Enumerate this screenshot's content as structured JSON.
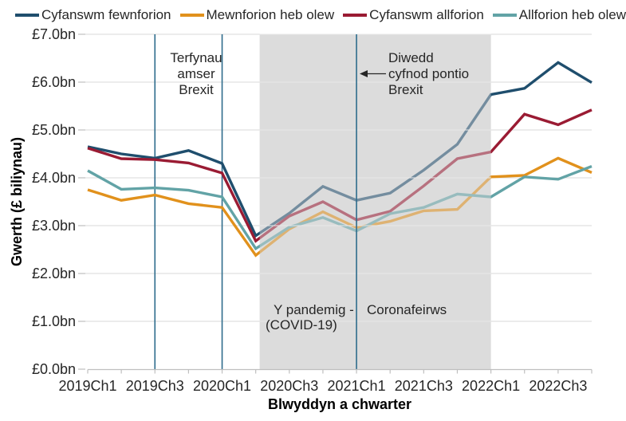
{
  "legend": {
    "items": [
      {
        "label": "Cyfanswm fewnforion",
        "color": "#1F4E6D"
      },
      {
        "label": "Mewnforion heb olew",
        "color": "#E1911C"
      },
      {
        "label": "Cyfanswm allforion",
        "color": "#9A1B33"
      },
      {
        "label": "Allforion heb olew",
        "color": "#62A3A6"
      }
    ]
  },
  "chart_data": {
    "type": "line",
    "title": "",
    "xlabel": "Blwyddyn a chwarter",
    "ylabel": "Gwerth (£ biliynau)",
    "ylim": [
      0,
      7
    ],
    "yticks": [
      "£0.0bn",
      "£1.0bn",
      "£2.0bn",
      "£3.0bn",
      "£4.0bn",
      "£5.0bn",
      "£6.0bn",
      "£7.0bn"
    ],
    "categories": [
      "2019Ch1",
      "2019Ch2",
      "2019Ch3",
      "2019Ch4",
      "2020Ch1",
      "2020Ch2",
      "2020Ch3",
      "2020Ch4",
      "2021Ch1",
      "2021Ch2",
      "2021Ch3",
      "2021Ch4",
      "2022Ch1",
      "2022Ch2",
      "2022Ch3",
      "2022Ch4"
    ],
    "x_label_every": 2,
    "grid": "horizontal",
    "legend_position": "top",
    "series": [
      {
        "name": "Cyfanswm fewnforion",
        "color": "#1F4E6D",
        "values": [
          4.65,
          4.5,
          4.41,
          4.57,
          4.3,
          2.79,
          3.26,
          3.82,
          3.53,
          3.68,
          4.16,
          4.7,
          5.74,
          5.87,
          6.41,
          5.99
        ]
      },
      {
        "name": "Mewnforion heb olew",
        "color": "#E1911C",
        "values": [
          3.75,
          3.53,
          3.64,
          3.46,
          3.38,
          2.38,
          2.93,
          3.29,
          2.96,
          3.09,
          3.31,
          3.34,
          4.02,
          4.05,
          4.41,
          4.11
        ]
      },
      {
        "name": "Cyfanswm allforion",
        "color": "#9A1B33",
        "values": [
          4.62,
          4.4,
          4.38,
          4.31,
          4.1,
          2.68,
          3.2,
          3.5,
          3.12,
          3.3,
          3.83,
          4.4,
          4.54,
          5.33,
          5.11,
          5.42
        ]
      },
      {
        "name": "Allforion heb olew",
        "color": "#62A3A6",
        "values": [
          4.15,
          3.76,
          3.79,
          3.74,
          3.6,
          2.52,
          2.97,
          3.17,
          2.89,
          3.25,
          3.38,
          3.66,
          3.6,
          4.02,
          3.97,
          4.24
        ]
      }
    ],
    "annotations": {
      "brexit_deadlines": {
        "lines": [
          "Terfynau",
          "amser",
          "Brexit"
        ],
        "vline_categories": [
          "2019Ch3",
          "2020Ch1"
        ]
      },
      "brexit_transition_end": {
        "lines": [
          "Diwedd",
          "cyfnod pontio",
          "Brexit"
        ],
        "vline_category": "2021Ch1",
        "arrow": "left"
      },
      "pandemic": {
        "label_line1_left": "Y pandemig -",
        "label_line1_right": "Coronafeirws",
        "label_line2": "(COVID-19)",
        "band_from": "2020Ch2",
        "band_to": "2022Ch1"
      }
    }
  },
  "colors": {
    "band": "#DCDCDC",
    "band_grid_highlight": "#E9E9E9",
    "gridline": "#D9D9D9",
    "axis": "#BFBFBF",
    "vline": "#2E6C8C",
    "text": "#262626"
  }
}
